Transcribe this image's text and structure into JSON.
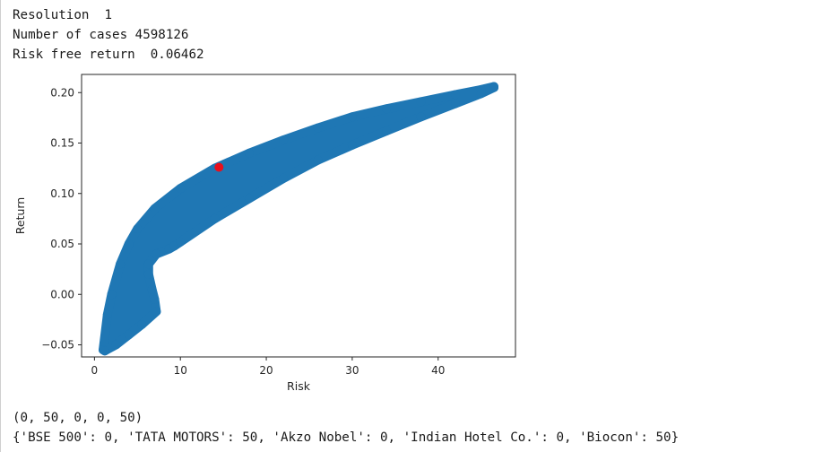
{
  "output_top": [
    "Resolution  1",
    "Number of cases 4598126",
    "Risk free return  0.06462"
  ],
  "output_bottom": [
    "(0, 50, 0, 0, 50)",
    "{'BSE 500': 0, 'TATA MOTORS': 50, 'Akzo Nobel': 0, 'Indian Hotel Co.': 0, 'Biocon': 50}"
  ],
  "colors": {
    "scatter": "#1f77b4",
    "highlight": "#e8101d",
    "axes": "#262626"
  },
  "chart_data": {
    "type": "scatter",
    "xlabel": "Risk",
    "ylabel": "Return",
    "xlim": [
      -1.5,
      49
    ],
    "ylim": [
      -0.062,
      0.218
    ],
    "x_ticks": [
      0,
      10,
      20,
      30,
      40
    ],
    "y_ticks": [
      -0.05,
      0.0,
      0.05,
      0.1,
      0.15,
      0.2
    ],
    "y_tick_labels": [
      "−0.05",
      "0.00",
      "0.05",
      "0.10",
      "0.15",
      "0.20"
    ],
    "grid": false,
    "legend": "none",
    "series": [
      {
        "marker": "circle",
        "upper_edge": [
          [
            1.0,
            -0.055
          ],
          [
            1.5,
            -0.02
          ],
          [
            2.0,
            0.0
          ],
          [
            3.0,
            0.03
          ],
          [
            4.0,
            0.05
          ],
          [
            5.0,
            0.065
          ],
          [
            7.0,
            0.085
          ],
          [
            10.0,
            0.105
          ],
          [
            14.0,
            0.125
          ],
          [
            18.0,
            0.14
          ],
          [
            22.0,
            0.153
          ],
          [
            26.0,
            0.165
          ],
          [
            30.0,
            0.176
          ],
          [
            34.0,
            0.184
          ],
          [
            38.0,
            0.191
          ],
          [
            42.0,
            0.198
          ],
          [
            45.0,
            0.203
          ],
          [
            46.5,
            0.206
          ]
        ],
        "lower_edge": [
          [
            1.2,
            -0.056
          ],
          [
            2.5,
            -0.05
          ],
          [
            4.0,
            -0.04
          ],
          [
            5.5,
            -0.03
          ],
          [
            7.2,
            -0.017
          ],
          [
            7.0,
            -0.005
          ],
          [
            6.7,
            0.005
          ],
          [
            6.3,
            0.02
          ],
          [
            6.3,
            0.03
          ],
          [
            7.2,
            0.04
          ],
          [
            8.7,
            0.045
          ],
          [
            9.3,
            0.048
          ],
          [
            10.0,
            0.052
          ],
          [
            14.0,
            0.075
          ],
          [
            18.0,
            0.095
          ],
          [
            22.0,
            0.115
          ],
          [
            26.0,
            0.133
          ],
          [
            30.0,
            0.148
          ],
          [
            34.0,
            0.162
          ],
          [
            38.0,
            0.176
          ],
          [
            42.0,
            0.189
          ],
          [
            45.0,
            0.199
          ],
          [
            46.5,
            0.205
          ]
        ]
      },
      {
        "marker": "circle",
        "highlighted_point": true,
        "x": [
          14.5
        ],
        "y": [
          0.126
        ]
      }
    ]
  }
}
